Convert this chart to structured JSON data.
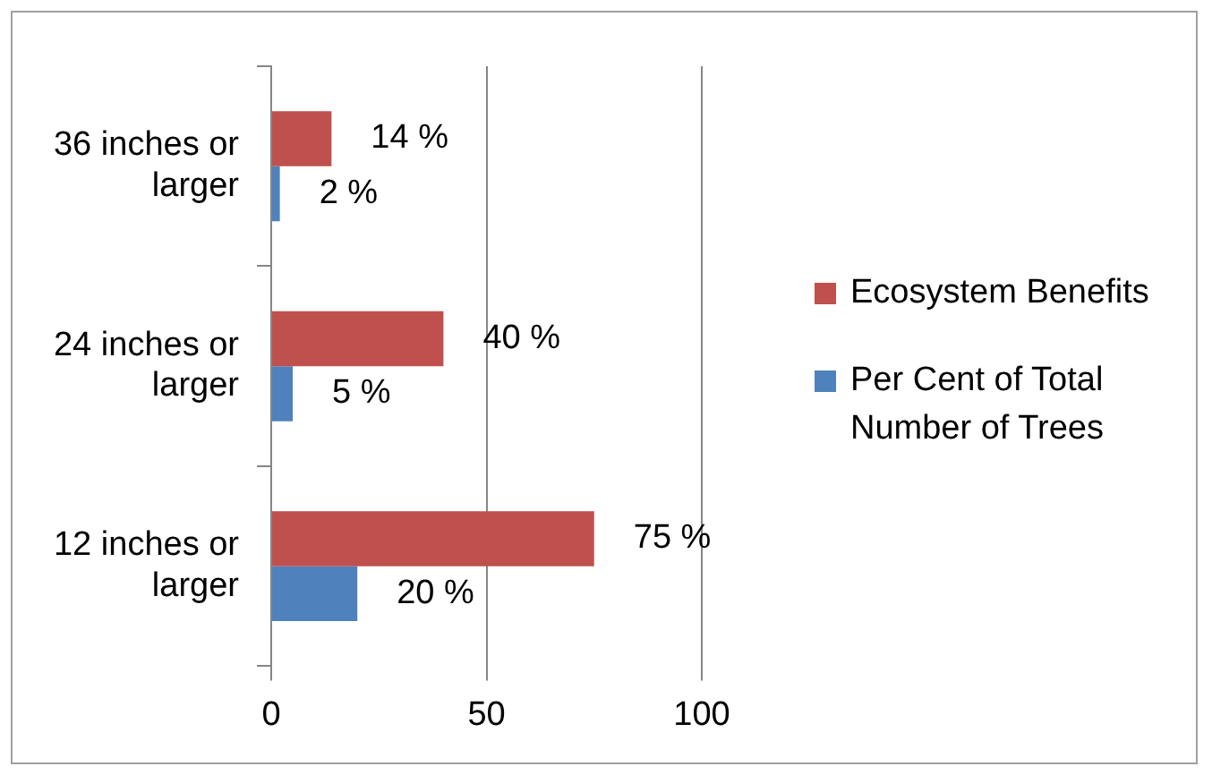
{
  "chart_data": {
    "type": "bar",
    "orientation": "horizontal",
    "categories": [
      "36 inches or larger",
      "24 inches or larger",
      "12 inches or larger"
    ],
    "series": [
      {
        "name": "Ecosystem Benefits",
        "color": "#c0504d",
        "values": [
          14,
          40,
          75
        ],
        "value_labels": [
          "14 %",
          "40 %",
          "75 %"
        ]
      },
      {
        "name": "Per Cent of Total Number of Trees",
        "color": "#4f81bd",
        "values": [
          2,
          5,
          20
        ],
        "value_labels": [
          "2 %",
          "5 %",
          "20 %"
        ]
      }
    ],
    "xlim": [
      0,
      100
    ],
    "xticks": [
      0,
      50,
      100
    ],
    "grid": "x",
    "legend": "right"
  }
}
